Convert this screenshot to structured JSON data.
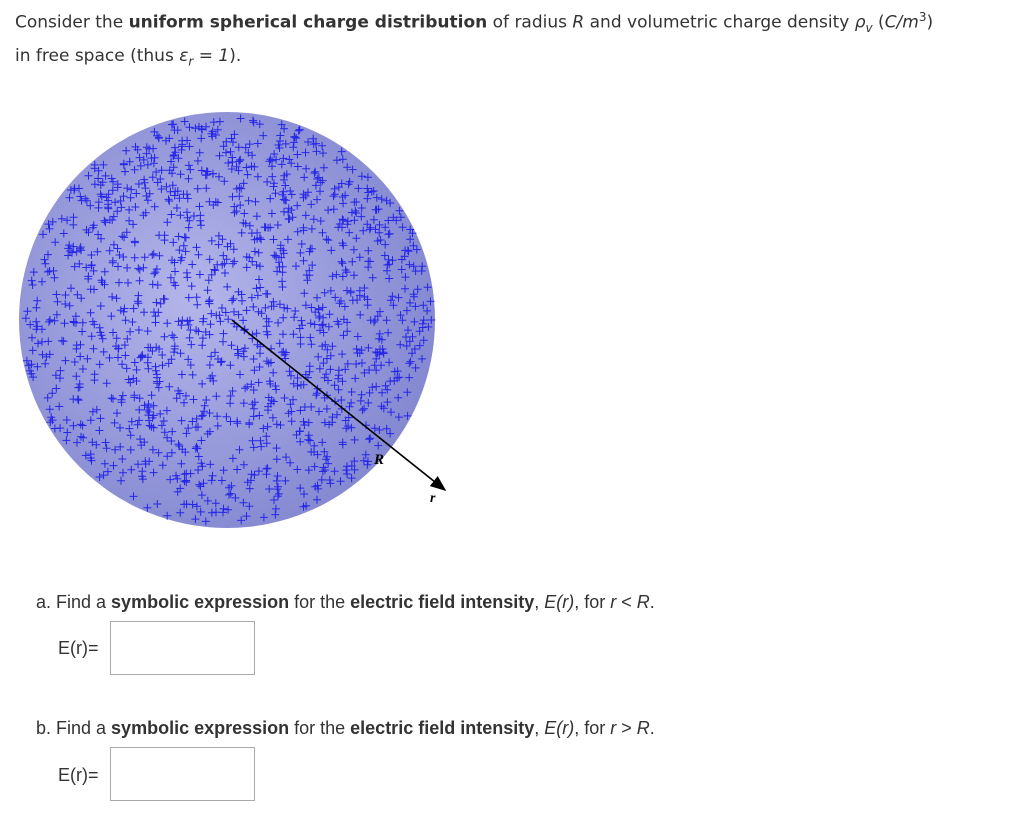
{
  "intro": {
    "line1": [
      "Consider the ",
      "uniform spherical charge distribution",
      " of radius ",
      "R",
      " and volumetric charge density ",
      "ρ",
      "v",
      " (",
      "C/m",
      "3",
      ")"
    ],
    "line2": [
      "in free space (thus ",
      "ε",
      "r",
      " = ",
      "1",
      ")."
    ]
  },
  "figure": {
    "radius_label": "R",
    "r_label": "r"
  },
  "questions": [
    {
      "parts": [
        "a. Find a ",
        "symbolic expression",
        " for the ",
        "electric field intensity",
        ", ",
        "E(r)",
        ", for ",
        "r",
        " < ",
        "R",
        "."
      ],
      "answer_label": "E(r)="
    },
    {
      "parts": [
        "b. Find a ",
        "symbolic expression",
        " for the ",
        "electric field intensity",
        ", ",
        "E(r)",
        ", for ",
        "r",
        " > ",
        "R",
        "."
      ],
      "answer_label": "E(r)="
    }
  ]
}
